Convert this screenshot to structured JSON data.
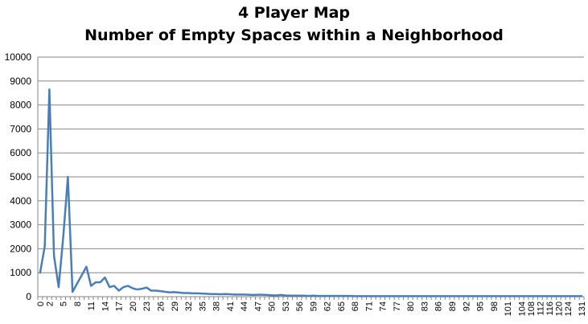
{
  "chart_data": {
    "type": "line",
    "title": "4 Player Map",
    "subtitle": "Number of Empty Spaces within a Neighborhood",
    "xlabel": "",
    "ylabel": "",
    "ylim": [
      0,
      10000
    ],
    "yticks": [
      0,
      1000,
      2000,
      3000,
      4000,
      5000,
      6000,
      7000,
      8000,
      9000,
      10000
    ],
    "x_tick_labels": [
      "0",
      "2",
      "5",
      "8",
      "11",
      "14",
      "17",
      "20",
      "23",
      "26",
      "29",
      "32",
      "35",
      "38",
      "41",
      "44",
      "47",
      "50",
      "53",
      "56",
      "59",
      "62",
      "65",
      "68",
      "71",
      "74",
      "77",
      "80",
      "83",
      "86",
      "89",
      "92",
      "95",
      "98",
      "101",
      "104",
      "108",
      "112",
      "116",
      "120",
      "124",
      "131"
    ],
    "grid": "horizontal",
    "legend": "none",
    "line_color": "#4a7ebb",
    "x": [
      "0",
      "1",
      "2",
      "3",
      "4",
      "5",
      "6",
      "7",
      "8",
      "9",
      "10",
      "11",
      "12",
      "13",
      "14",
      "15",
      "16",
      "17",
      "18",
      "19",
      "20",
      "21",
      "22",
      "23",
      "24",
      "25",
      "26",
      "27",
      "28",
      "29",
      "30",
      "31",
      "32",
      "33",
      "34",
      "35",
      "36",
      "37",
      "38",
      "39",
      "40",
      "41",
      "42",
      "43",
      "44",
      "45",
      "46",
      "47",
      "48",
      "49",
      "50",
      "51",
      "52",
      "53",
      "54",
      "55",
      "56",
      "57",
      "58",
      "59",
      "60",
      "61",
      "62",
      "63",
      "64",
      "65",
      "66",
      "67",
      "68",
      "69",
      "70",
      "71",
      "72",
      "73",
      "74",
      "75",
      "76",
      "77",
      "78",
      "79",
      "80",
      "81",
      "82",
      "83",
      "84",
      "85",
      "86",
      "87",
      "88",
      "89",
      "90",
      "91",
      "92",
      "93",
      "94",
      "95",
      "96",
      "97",
      "98",
      "99",
      "100",
      "101",
      "102",
      "103",
      "104",
      "106",
      "108",
      "110",
      "112",
      "114",
      "116",
      "118",
      "120",
      "122",
      "124",
      "126",
      "128",
      "131"
    ],
    "values": [
      1000,
      2100,
      8650,
      1700,
      400,
      2500,
      5000,
      200,
      550,
      900,
      1250,
      450,
      600,
      600,
      800,
      400,
      450,
      250,
      400,
      450,
      350,
      300,
      330,
      380,
      250,
      250,
      230,
      200,
      180,
      190,
      170,
      150,
      150,
      140,
      140,
      130,
      120,
      110,
      110,
      100,
      110,
      100,
      90,
      90,
      90,
      80,
      70,
      80,
      80,
      70,
      60,
      50,
      70,
      50,
      40,
      40,
      40,
      40,
      30,
      40,
      30,
      30,
      30,
      30,
      30,
      30,
      30,
      30,
      20,
      20,
      20,
      20,
      20,
      20,
      20,
      20,
      20,
      20,
      20,
      20,
      20,
      20,
      20,
      20,
      20,
      20,
      20,
      20,
      20,
      20,
      20,
      20,
      20,
      20,
      20,
      20,
      20,
      20,
      20,
      20,
      20,
      20,
      20,
      20,
      20,
      20,
      20,
      20,
      20,
      20,
      20,
      20,
      20,
      20,
      20,
      20,
      20,
      20
    ]
  }
}
